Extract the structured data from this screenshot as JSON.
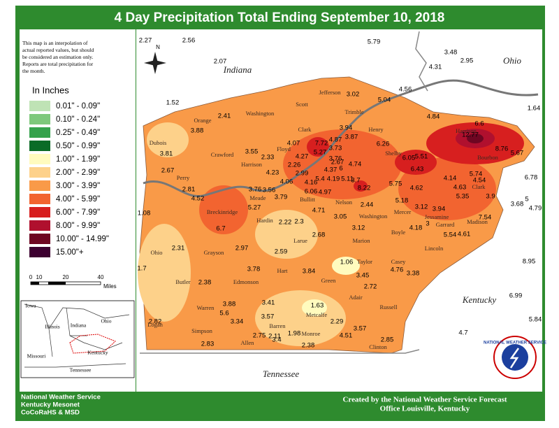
{
  "title": "4 Day Precipitation Total Ending September 10, 2018",
  "disclaimer": [
    "This map is an interpolation of",
    "actual reported values, but should",
    "be considered an estimation only.",
    "Reports are total precipitation for",
    "the month."
  ],
  "legend": {
    "title": "In Inches",
    "items": [
      {
        "label": "0.01\" - 0.09\"",
        "color": "#bfe3b5"
      },
      {
        "label": "0.10\" - 0.24\"",
        "color": "#7ec87b"
      },
      {
        "label": "0.25\" - 0.49\"",
        "color": "#35a24c"
      },
      {
        "label": "0.50\" - 0.99\"",
        "color": "#0b6b27"
      },
      {
        "label": "1.00\" - 1.99\"",
        "color": "#fffbbe"
      },
      {
        "label": "2.00\" - 2.99\"",
        "color": "#fdd18a"
      },
      {
        "label": "3.00\" - 3.99\"",
        "color": "#f99a48"
      },
      {
        "label": "4.00\" - 5.99\"",
        "color": "#f26430"
      },
      {
        "label": "6.00\" - 7.99\"",
        "color": "#d71f1f"
      },
      {
        "label": "8.00\" - 9.99\"",
        "color": "#b0102e"
      },
      {
        "label": "10.00\" - 14.99\"",
        "color": "#6e0622"
      },
      {
        "label": "15.00\"+",
        "color": "#3d0030"
      }
    ]
  },
  "scale": [
    "0",
    "10",
    "20",
    "40",
    "Miles"
  ],
  "north": "N",
  "states": [
    "Indiana",
    "Ohio",
    "Kentucky",
    "Tennessee"
  ],
  "inset": [
    "Iowa",
    "Illinois",
    "Indiana",
    "Ohio",
    "Missouri",
    "Kentucky",
    "Tennessee"
  ],
  "counties": [
    "Jefferson",
    "Scott",
    "Trimble",
    "Washington",
    "Orange",
    "Clark",
    "Henry",
    "Dubois",
    "Crawford",
    "Floyd",
    "Shelby",
    "Harrison",
    "Harrison",
    "Bourbon",
    "Perry",
    "Meade",
    "Bullitt",
    "Nelson",
    "Washington",
    "Mercer",
    "Jessamine",
    "Clark",
    "Madison",
    "Garrard",
    "Boyle",
    "Lincoln",
    "Breckinridge",
    "Hardin",
    "Larue",
    "Marion",
    "Taylor",
    "Casey",
    "Grayson",
    "Ohio",
    "Hart",
    "Green",
    "Butler",
    "Edmonson",
    "Adair",
    "Russell",
    "Warren",
    "Barren",
    "Metcalfe",
    "Logan",
    "Monroe",
    "Clinton",
    "Simpson",
    "Allen"
  ],
  "values": [
    2.27,
    2.56,
    5.79,
    3.48,
    2.95,
    4.31,
    2.07,
    1.52,
    4.56,
    5.04,
    3.02,
    4.84,
    1.64,
    6.6,
    12.77,
    8.76,
    5.67,
    2.41,
    3.88,
    3.94,
    3.87,
    4.07,
    7.72,
    4.87,
    3.73,
    6.26,
    3.81,
    3.55,
    2.33,
    5.27,
    3.76,
    6.05,
    5.51,
    4.27,
    2.67,
    4.74,
    6.43,
    2.67,
    4.23,
    2.26,
    2.99,
    4.37,
    6,
    6.78,
    4.06,
    4.16,
    5.4,
    4.19,
    5.11,
    5.74,
    4.14,
    4.54,
    5.75,
    4.62,
    4.63,
    2.81,
    3.76,
    3.56,
    6.06,
    4.97,
    3.7,
    8.22,
    5.35,
    3.9,
    5,
    3.68,
    4.79,
    4.52,
    3.79,
    5.18,
    3.12,
    3.94,
    2.44,
    1.08,
    5.27,
    4.71,
    3.05,
    7.54,
    2.22,
    2.3,
    4.18,
    3,
    5.54,
    4.61,
    6.7,
    2.68,
    3.12,
    2.31,
    2.97,
    2.59,
    1.7,
    8.95,
    1.06,
    3.78,
    3.84,
    4.76,
    3.38,
    3.45,
    2.38,
    2.72,
    6.99,
    3.88,
    3.41,
    1.63,
    5.6,
    3.57,
    3.34,
    2.82,
    2.29,
    5.84,
    4.7,
    1.98,
    3.57,
    2.75,
    2.11,
    3.4,
    4.51,
    2.85,
    2.83,
    2.38
  ],
  "credits_left": [
    "National Weather Service",
    "Kentucky Mesonet",
    "CoCoRaHS & MSD"
  ],
  "credits_right": [
    "Created by the National Weather Service Forecast",
    "Office Louisville, Kentucky"
  ],
  "logo": "NATIONAL WEATHER SERVICE"
}
